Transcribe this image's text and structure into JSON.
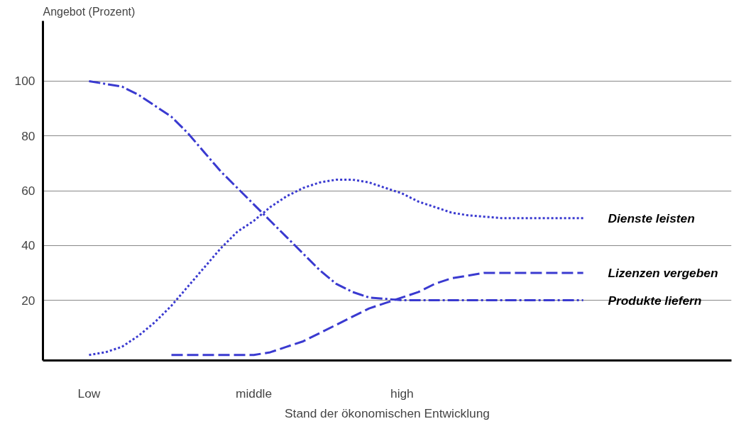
{
  "chart_data": {
    "type": "line",
    "ylabel": "Angebot (Prozent)",
    "xlabel": "Stand der ökonomischen Entwicklung",
    "categories": [
      "Low",
      null,
      null,
      null,
      null,
      null,
      null,
      null,
      null,
      null,
      "middle",
      null,
      null,
      null,
      null,
      null,
      null,
      null,
      null,
      "high",
      null,
      null,
      null,
      null,
      null,
      null,
      null,
      null,
      null,
      null,
      null
    ],
    "ylim": [
      -2,
      122
    ],
    "yticks": [
      20,
      40,
      60,
      80,
      100
    ],
    "grid": "y",
    "marker": "none",
    "series": [
      {
        "name": "Dienste leisten",
        "color": "#3a3ad0",
        "line_style": "dotted",
        "values": [
          0,
          1,
          3,
          7,
          12,
          18,
          25,
          32,
          39,
          45,
          49,
          54,
          58,
          61,
          63,
          64,
          64,
          63,
          61,
          59,
          56,
          54,
          52,
          51,
          50.5,
          50,
          50,
          50,
          50,
          50,
          50
        ]
      },
      {
        "name": "Lizenzen vergeben",
        "color": "#3a3ad0",
        "line_style": "dashed",
        "values": [
          null,
          null,
          null,
          null,
          null,
          0,
          0,
          0,
          0,
          0,
          0,
          1,
          3,
          5,
          8,
          11,
          14,
          17,
          19,
          21,
          23,
          26,
          28,
          29,
          30,
          30,
          30,
          30,
          30,
          30,
          30
        ]
      },
      {
        "name": "Produkte liefern",
        "color": "#3a3ad0",
        "line_style": "dashdot",
        "values": [
          100,
          99,
          98,
          95,
          91,
          87,
          81,
          74,
          67,
          61,
          55,
          49,
          43,
          37,
          31,
          26,
          23,
          21,
          20.5,
          20,
          20,
          20,
          20,
          20,
          20,
          20,
          20,
          20,
          20,
          20,
          20
        ]
      }
    ]
  }
}
